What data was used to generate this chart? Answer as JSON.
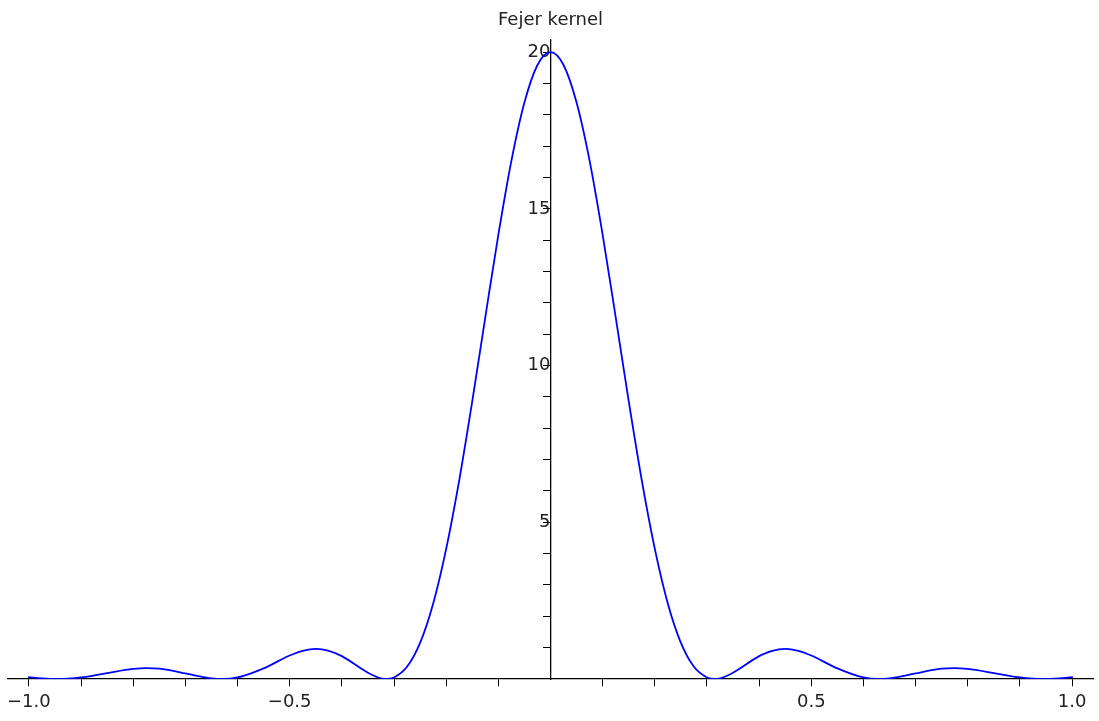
{
  "chart_data": {
    "type": "line",
    "title": "Fejer kernel",
    "x": [
      -1,
      -0.975,
      -0.942,
      -0.925,
      -0.9,
      -0.85,
      -0.8,
      -0.775,
      -0.75,
      -0.7,
      -0.675,
      -0.65,
      -0.628,
      -0.6,
      -0.55,
      -0.5,
      -0.475,
      -0.45,
      -0.425,
      -0.4,
      -0.35,
      -0.325,
      -0.314,
      -0.3,
      -0.275,
      -0.25,
      -0.225,
      -0.2,
      -0.175,
      -0.15,
      -0.125,
      -0.1,
      -0.075,
      -0.05,
      -0.025,
      0,
      0.025,
      0.05,
      0.075,
      0.1,
      0.125,
      0.15,
      0.175,
      0.2,
      0.225,
      0.25,
      0.275,
      0.3,
      0.314,
      0.325,
      0.35,
      0.4,
      0.425,
      0.45,
      0.475,
      0.5,
      0.55,
      0.6,
      0.628,
      0.65,
      0.675,
      0.7,
      0.75,
      0.775,
      0.8,
      0.85,
      0.9,
      0.925,
      0.942,
      0.975,
      1
    ],
    "series": [
      {
        "color": "#0000ff",
        "values": [
          0.06,
          0.02,
          0,
          0.01,
          0.05,
          0.19,
          0.32,
          0.35,
          0.33,
          0.18,
          0.09,
          0.02,
          0,
          0.05,
          0.34,
          0.75,
          0.9,
          0.96,
          0.9,
          0.73,
          0.2,
          0.02,
          0,
          0.05,
          0.39,
          1.15,
          2.4,
          4.15,
          6.34,
          8.86,
          11.54,
          14.17,
          16.53,
          18.39,
          19.59,
          20,
          19.59,
          18.39,
          16.53,
          14.17,
          11.54,
          8.86,
          6.34,
          4.15,
          2.4,
          1.15,
          0.39,
          0.05,
          0,
          0.02,
          0.2,
          0.73,
          0.9,
          0.96,
          0.9,
          0.75,
          0.34,
          0.05,
          0,
          0.02,
          0.09,
          0.18,
          0.33,
          0.35,
          0.32,
          0.19,
          0.05,
          0.01,
          0,
          0.02,
          0.06
        ]
      }
    ],
    "xlim": [
      -1.04,
      1.04
    ],
    "ylim": [
      0,
      20.4
    ],
    "xticks": [
      {
        "value": -1,
        "label": "−1.0"
      },
      {
        "value": -0.9,
        "label": null
      },
      {
        "value": -0.8,
        "label": null
      },
      {
        "value": -0.7,
        "label": null
      },
      {
        "value": -0.6,
        "label": null
      },
      {
        "value": -0.5,
        "label": "−0.5"
      },
      {
        "value": -0.4,
        "label": null
      },
      {
        "value": -0.3,
        "label": null
      },
      {
        "value": -0.2,
        "label": null
      },
      {
        "value": -0.1,
        "label": null
      },
      {
        "value": 0.1,
        "label": null
      },
      {
        "value": 0.2,
        "label": null
      },
      {
        "value": 0.3,
        "label": null
      },
      {
        "value": 0.4,
        "label": null
      },
      {
        "value": 0.5,
        "label": "0.5"
      },
      {
        "value": 0.6,
        "label": null
      },
      {
        "value": 0.7,
        "label": null
      },
      {
        "value": 0.8,
        "label": null
      },
      {
        "value": 0.9,
        "label": null
      },
      {
        "value": 1,
        "label": "1.0"
      }
    ],
    "yticks": [
      {
        "value": 1,
        "label": null
      },
      {
        "value": 2,
        "label": null
      },
      {
        "value": 3,
        "label": null
      },
      {
        "value": 4,
        "label": null
      },
      5,
      {
        "value": 6,
        "label": null
      },
      {
        "value": 7,
        "label": null
      },
      {
        "value": 8,
        "label": null
      },
      {
        "value": 9,
        "label": null
      },
      10,
      {
        "value": 11,
        "label": null
      },
      {
        "value": 12,
        "label": null
      },
      {
        "value": 13,
        "label": null
      },
      {
        "value": 14,
        "label": null
      },
      15,
      {
        "value": 16,
        "label": null
      },
      {
        "value": 17,
        "label": null
      },
      {
        "value": 18,
        "label": null
      },
      {
        "value": 19,
        "label": null
      },
      20
    ],
    "grid": false,
    "legend": false,
    "marker": "none",
    "line_style": "solid"
  }
}
